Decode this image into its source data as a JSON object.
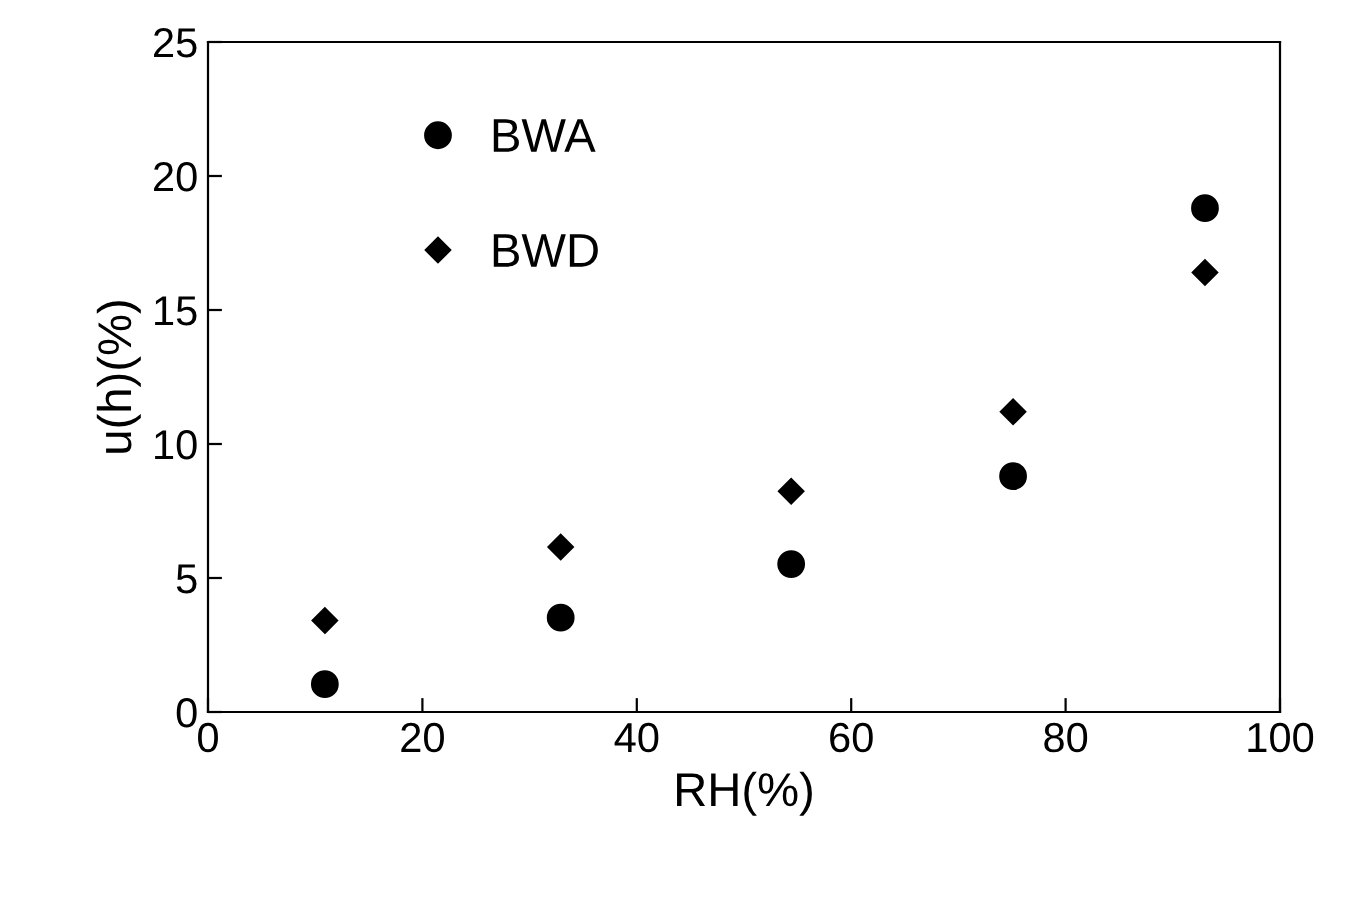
{
  "chart_data": {
    "type": "scatter",
    "xlabel": "RH(%)",
    "ylabel": "u(h)(%)",
    "xlim": [
      0,
      100
    ],
    "xticks": [
      0,
      20,
      40,
      60,
      80,
      100
    ],
    "ylim": [
      0,
      25
    ],
    "yticks": [
      0,
      5,
      10,
      15,
      20,
      25
    ],
    "grid": false,
    "legend": "top left",
    "series": [
      {
        "name": "BWA",
        "color": "#000000",
        "marker": "circle",
        "x": [
          10.9,
          32.9,
          54.4,
          75.1,
          93.0
        ],
        "values": [
          1.04,
          3.52,
          5.52,
          8.8,
          18.8
        ]
      },
      {
        "name": "BWD",
        "color": "#000000",
        "marker": "diamond",
        "x": [
          10.9,
          32.9,
          54.4,
          75.1,
          93.0
        ],
        "values": [
          3.41,
          6.16,
          8.24,
          11.2,
          16.4
        ]
      }
    ]
  }
}
